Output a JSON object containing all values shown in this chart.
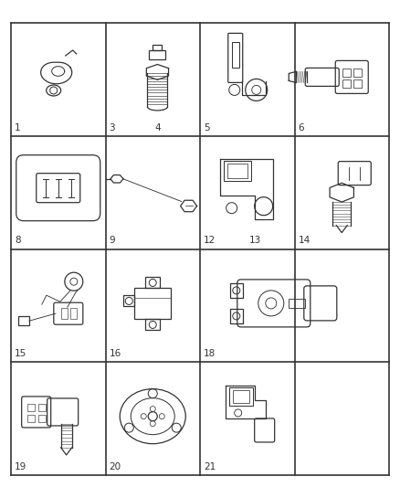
{
  "background_color": "#ffffff",
  "grid_line_color": "#333333",
  "line_color": "#333333",
  "label_color": "#333333",
  "fig_width": 4.38,
  "fig_height": 5.33,
  "dpi": 100,
  "num_rows": 4,
  "num_cols": 4,
  "cells": [
    {
      "row": 0,
      "col": 0,
      "label": "1"
    },
    {
      "row": 0,
      "col": 1,
      "label": "3",
      "label2": "4"
    },
    {
      "row": 0,
      "col": 2,
      "label": "5"
    },
    {
      "row": 0,
      "col": 3,
      "label": "6"
    },
    {
      "row": 1,
      "col": 0,
      "label": "8"
    },
    {
      "row": 1,
      "col": 1,
      "label": "9"
    },
    {
      "row": 1,
      "col": 2,
      "label": "12",
      "label2": "13"
    },
    {
      "row": 1,
      "col": 3,
      "label": "14"
    },
    {
      "row": 2,
      "col": 0,
      "label": "15"
    },
    {
      "row": 2,
      "col": 1,
      "label": "16"
    },
    {
      "row": 2,
      "col": 2,
      "label": "18",
      "colspan": 2
    },
    {
      "row": 3,
      "col": 0,
      "label": "19"
    },
    {
      "row": 3,
      "col": 1,
      "label": "20"
    },
    {
      "row": 3,
      "col": 2,
      "label": "21"
    },
    {
      "row": 3,
      "col": 3,
      "label": ""
    }
  ]
}
